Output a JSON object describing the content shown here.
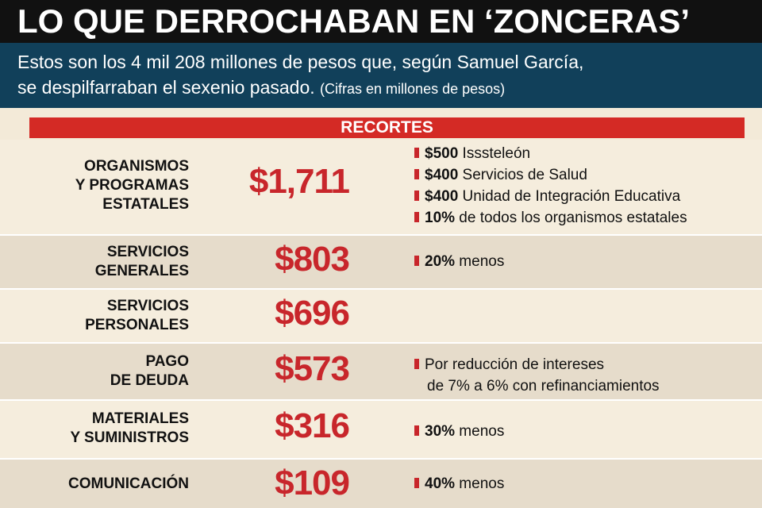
{
  "title": "LO QUE DERROCHABAN EN ‘ZONCERAS’",
  "subtitle": {
    "line1": "Estos son los 4 mil 208 millones de pesos que, según Samuel García,",
    "line2": "se despilfarraban el sexenio pasado.",
    "note": "(Cifras en millones de pesos)"
  },
  "section_header": "RECORTES",
  "colors": {
    "accent_red": "#c8262b",
    "header_red": "#d42a25",
    "title_bg": "#111111",
    "subtitle_bg": "#11405a"
  },
  "rows": [
    {
      "label": "ORGANISMOS\nY PROGRAMAS\nESTATALES",
      "amount": "$1,711",
      "notes": [
        {
          "bold": "$500",
          "text": " Isssteleón"
        },
        {
          "bold": "$400",
          "text": " Servicios de Salud"
        },
        {
          "bold": "$400",
          "text": " Unidad de Integración Educativa"
        },
        {
          "bold": "10%",
          "text": " de todos los organismos estatales"
        }
      ]
    },
    {
      "label": "SERVICIOS\nGENERALES",
      "amount": "$803",
      "notes": [
        {
          "bold": "20%",
          "text": " menos"
        }
      ]
    },
    {
      "label": "SERVICIOS\nPERSONALES",
      "amount": "$696",
      "notes": []
    },
    {
      "label": "PAGO\nDE DEUDA",
      "amount": "$573",
      "notes": [
        {
          "bold": "",
          "text": "Por reducción de intereses"
        }
      ],
      "note_continuation": "de 7% a 6% con refinanciamientos"
    },
    {
      "label": "MATERIALES\nY SUMINISTROS",
      "amount": "$316",
      "notes": [
        {
          "bold": "30%",
          "text": " menos"
        }
      ]
    },
    {
      "label": "COMUNICACIÓN",
      "amount": "$109",
      "notes": [
        {
          "bold": "40%",
          "text": " menos"
        }
      ]
    }
  ]
}
